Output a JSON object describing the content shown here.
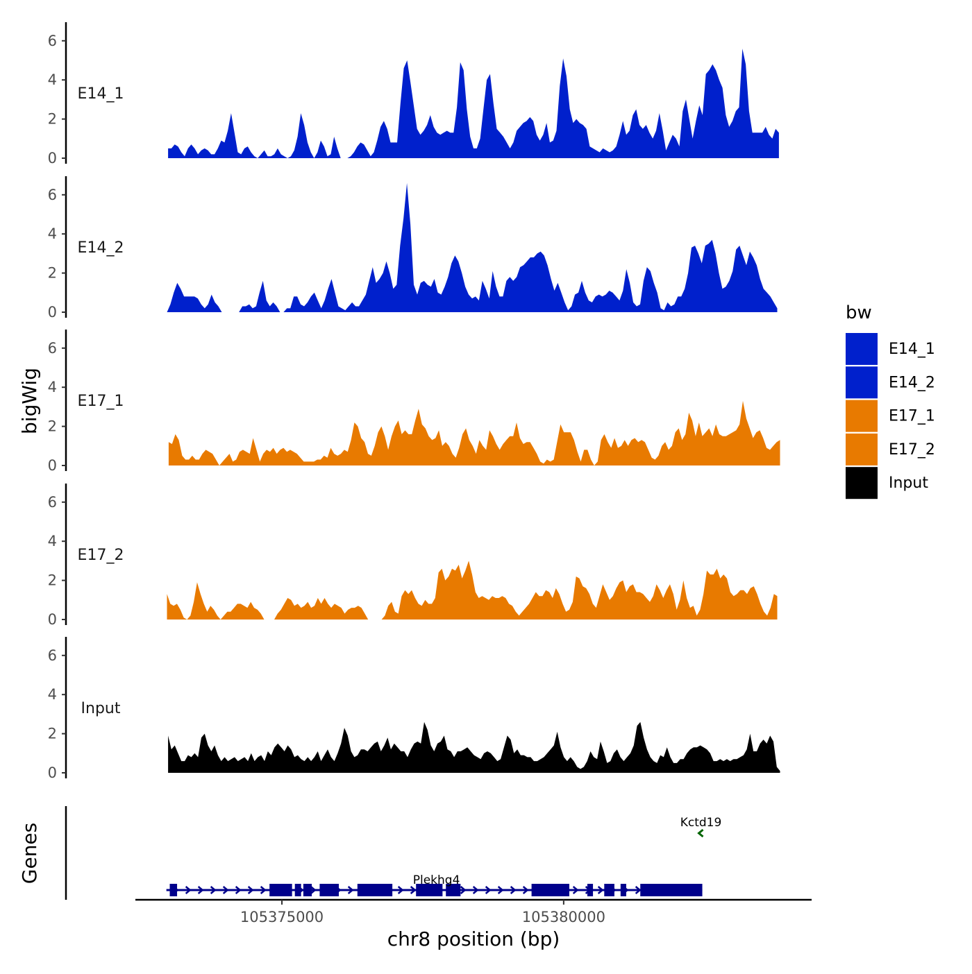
{
  "chart_data": {
    "type": "area",
    "title": "",
    "ylabel": "bigWig",
    "xlabel": "chr8 position (bp)",
    "genes_label": "Genes",
    "xlim": [
      105372400,
      105384400
    ],
    "x_ticks": [
      105375000,
      105380000
    ],
    "x_tick_labels": [
      "105375000",
      "105380000"
    ],
    "ylim": [
      0,
      7
    ],
    "y_ticks": [
      0,
      2,
      4,
      6
    ],
    "y_tick_labels": [
      "0",
      "2",
      "4",
      "6"
    ],
    "legend": {
      "title": "bw",
      "position": "right",
      "entries": [
        {
          "label": "E14_1",
          "color": "#0020cc"
        },
        {
          "label": "E14_2",
          "color": "#0020cc"
        },
        {
          "label": "E17_1",
          "color": "#e87a00"
        },
        {
          "label": "E17_2",
          "color": "#e87a00"
        },
        {
          "label": "Input",
          "color": "#000000"
        }
      ]
    },
    "tracks": [
      {
        "name": "E14_1",
        "color": "#0020cc",
        "x_start": 105372980,
        "x_end": 105383820,
        "values": [
          0.5,
          0.5,
          0.7,
          0.6,
          0.3,
          0.1,
          0.5,
          0.7,
          0.5,
          0.2,
          0.4,
          0.5,
          0.4,
          0.2,
          0.2,
          0.5,
          0.9,
          0.8,
          1.4,
          2.3,
          1.3,
          0.3,
          0.2,
          0.5,
          0.6,
          0.3,
          0.1,
          0.0,
          0.2,
          0.4,
          0.1,
          0.1,
          0.2,
          0.5,
          0.2,
          0.1,
          0.0,
          0.1,
          0.4,
          1.1,
          2.3,
          1.7,
          0.8,
          0.3,
          0.0,
          0.3,
          0.9,
          0.6,
          0.1,
          0.2,
          1.1,
          0.5,
          0.0,
          0.0,
          0.0,
          0.1,
          0.3,
          0.6,
          0.8,
          0.7,
          0.4,
          0.1,
          0.3,
          0.9,
          1.6,
          1.9,
          1.5,
          0.8,
          0.8,
          0.8,
          2.8,
          4.6,
          5.0,
          3.9,
          2.7,
          1.5,
          1.2,
          1.4,
          1.7,
          2.2,
          1.6,
          1.3,
          1.2,
          1.3,
          1.4,
          1.3,
          1.3,
          2.6,
          4.9,
          4.5,
          2.5,
          1.1,
          0.5,
          0.5,
          1.0,
          2.5,
          4.0,
          4.3,
          2.8,
          1.5,
          1.3,
          1.1,
          0.8,
          0.5,
          0.8,
          1.4,
          1.6,
          1.8,
          1.9,
          2.1,
          1.9,
          1.2,
          0.9,
          1.2,
          1.8,
          0.8,
          0.9,
          1.4,
          3.7,
          5.1,
          4.2,
          2.5,
          1.8,
          2.0,
          1.8,
          1.7,
          1.5,
          0.6,
          0.5,
          0.4,
          0.3,
          0.5,
          0.4,
          0.3,
          0.4,
          0.6,
          1.2,
          1.9,
          1.2,
          1.4,
          2.2,
          2.5,
          1.7,
          1.5,
          1.7,
          1.3,
          1.0,
          1.4,
          2.3,
          1.4,
          0.4,
          0.8,
          1.2,
          1.0,
          0.6,
          2.4,
          3.0,
          2.0,
          1.0,
          1.9,
          2.7,
          2.2,
          4.3,
          4.5,
          4.8,
          4.5,
          4.0,
          3.6,
          2.2,
          1.6,
          1.9,
          2.4,
          2.6,
          5.6,
          4.8,
          2.4,
          1.3,
          1.3,
          1.3,
          1.3,
          1.6,
          1.2,
          1.0,
          1.5,
          1.3
        ]
      },
      {
        "name": "E14_2",
        "color": "#0020cc",
        "x_start": 105372960,
        "x_end": 105383790,
        "values": [
          0.0,
          0.4,
          1.0,
          1.5,
          1.2,
          0.8,
          0.8,
          0.8,
          0.8,
          0.7,
          0.4,
          0.2,
          0.4,
          0.9,
          0.5,
          0.3,
          0.0,
          null,
          null,
          null,
          null,
          0.0,
          0.3,
          0.3,
          0.4,
          0.2,
          0.3,
          1.0,
          1.6,
          0.6,
          0.3,
          0.5,
          0.3,
          0.0,
          0.0,
          0.2,
          0.2,
          0.8,
          0.8,
          0.4,
          0.3,
          0.5,
          0.8,
          1.0,
          0.6,
          0.2,
          0.6,
          1.2,
          1.7,
          1.0,
          0.3,
          0.2,
          0.1,
          0.3,
          0.5,
          0.3,
          0.3,
          0.6,
          0.9,
          1.6,
          2.3,
          1.5,
          1.7,
          2.0,
          2.6,
          2.0,
          1.2,
          1.4,
          3.4,
          4.8,
          6.6,
          4.5,
          1.4,
          0.9,
          1.5,
          1.6,
          1.4,
          1.3,
          1.7,
          1.0,
          0.9,
          1.3,
          1.8,
          2.5,
          2.9,
          2.6,
          2.0,
          1.3,
          0.9,
          0.7,
          0.8,
          0.6,
          1.6,
          1.2,
          0.7,
          2.1,
          1.3,
          0.8,
          0.8,
          1.6,
          1.8,
          1.6,
          1.8,
          2.3,
          2.4,
          2.6,
          2.8,
          2.8,
          3.0,
          3.1,
          2.9,
          2.4,
          1.7,
          1.1,
          1.5,
          1.0,
          0.5,
          0.1,
          0.3,
          0.9,
          1.0,
          1.6,
          1.0,
          0.6,
          0.5,
          0.8,
          0.9,
          0.8,
          0.9,
          1.1,
          1.0,
          0.8,
          0.6,
          1.1,
          2.2,
          1.5,
          0.5,
          0.3,
          0.4,
          1.6,
          2.3,
          2.1,
          1.5,
          1.0,
          0.2,
          0.1,
          0.5,
          0.3,
          0.4,
          0.8,
          0.8,
          1.2,
          2.0,
          3.3,
          3.4,
          3.0,
          2.5,
          3.4,
          3.5,
          3.7,
          3.0,
          2.0,
          1.2,
          1.3,
          1.6,
          2.1,
          3.2,
          3.4,
          2.9,
          2.4,
          3.1,
          2.8,
          2.4,
          1.7,
          1.2,
          1.0,
          0.8,
          0.5,
          0.2
        ]
      },
      {
        "name": "E17_1",
        "color": "#e87a00",
        "x_start": 105372990,
        "x_end": 105383840,
        "values": [
          1.2,
          1.1,
          1.6,
          1.3,
          0.5,
          0.3,
          0.3,
          0.5,
          0.3,
          0.3,
          0.6,
          0.8,
          0.7,
          0.6,
          0.3,
          0.0,
          0.2,
          0.4,
          0.6,
          0.2,
          0.3,
          0.7,
          0.8,
          0.7,
          0.6,
          1.4,
          0.8,
          0.2,
          0.6,
          0.8,
          0.7,
          0.9,
          0.6,
          0.8,
          0.9,
          0.7,
          0.8,
          0.7,
          0.6,
          0.4,
          0.2,
          0.2,
          0.2,
          0.2,
          0.3,
          0.3,
          0.5,
          0.4,
          0.9,
          0.6,
          0.5,
          0.6,
          0.8,
          0.7,
          1.3,
          2.2,
          2.0,
          1.4,
          1.2,
          0.6,
          0.5,
          1.0,
          1.7,
          2.0,
          1.5,
          0.8,
          1.5,
          2.0,
          2.3,
          1.6,
          1.8,
          1.6,
          1.6,
          2.3,
          2.9,
          2.1,
          1.9,
          1.5,
          1.3,
          1.4,
          1.8,
          1.0,
          1.2,
          1.0,
          0.6,
          0.4,
          0.9,
          1.6,
          1.9,
          1.3,
          1.0,
          0.6,
          1.3,
          1.0,
          0.8,
          1.8,
          1.5,
          1.1,
          0.8,
          1.1,
          1.3,
          1.5,
          1.5,
          2.2,
          1.4,
          1.1,
          1.2,
          1.2,
          0.9,
          0.6,
          0.2,
          0.1,
          0.3,
          0.2,
          0.3,
          1.2,
          2.1,
          1.7,
          1.7,
          1.7,
          1.3,
          0.7,
          0.2,
          0.8,
          0.8,
          0.3,
          0.0,
          0.2,
          1.3,
          1.6,
          1.2,
          0.9,
          1.4,
          0.9,
          1.0,
          1.3,
          1.0,
          1.3,
          1.4,
          1.2,
          1.3,
          1.2,
          0.8,
          0.4,
          0.3,
          0.5,
          1.0,
          1.2,
          0.8,
          1.0,
          1.7,
          1.9,
          1.3,
          1.6,
          2.7,
          2.3,
          1.5,
          2.2,
          1.5,
          1.7,
          1.9,
          1.5,
          2.1,
          1.6,
          1.5,
          1.5,
          1.6,
          1.7,
          1.8,
          2.1,
          3.3,
          2.4,
          1.9,
          1.4,
          1.7,
          1.8,
          1.4,
          0.9,
          0.8,
          1.0,
          1.2,
          1.3
        ]
      },
      {
        "name": "E17_2",
        "color": "#e87a00",
        "x_start": 105372960,
        "x_end": 105383790,
        "values": [
          1.3,
          0.8,
          0.7,
          0.8,
          0.5,
          0.1,
          0.0,
          0.2,
          0.9,
          1.9,
          1.3,
          0.8,
          0.4,
          0.7,
          0.5,
          0.2,
          0.0,
          0.2,
          0.4,
          0.4,
          0.6,
          0.8,
          0.8,
          0.7,
          0.6,
          0.9,
          0.6,
          0.5,
          0.3,
          0.0,
          null,
          null,
          0.0,
          0.3,
          0.5,
          0.8,
          1.1,
          1.0,
          0.7,
          0.8,
          0.6,
          0.7,
          0.9,
          0.6,
          0.7,
          1.1,
          0.8,
          1.1,
          0.8,
          0.6,
          0.8,
          0.7,
          0.6,
          0.3,
          0.5,
          0.6,
          0.6,
          0.7,
          0.6,
          0.3,
          0.0,
          null,
          null,
          null,
          0.0,
          0.2,
          0.7,
          0.9,
          0.4,
          0.3,
          1.2,
          1.5,
          1.3,
          1.5,
          1.1,
          0.8,
          0.7,
          1.0,
          0.8,
          0.8,
          1.1,
          2.4,
          2.6,
          2.0,
          2.2,
          2.6,
          2.5,
          2.8,
          2.1,
          2.5,
          3.0,
          2.3,
          1.4,
          1.1,
          1.2,
          1.1,
          1.0,
          1.2,
          1.1,
          1.1,
          1.2,
          1.1,
          0.8,
          0.7,
          0.4,
          0.2,
          0.4,
          0.6,
          0.8,
          1.1,
          1.4,
          1.2,
          1.2,
          1.5,
          1.4,
          1.1,
          1.6,
          1.3,
          0.8,
          0.4,
          0.5,
          0.9,
          2.2,
          2.1,
          1.7,
          1.6,
          1.3,
          0.8,
          0.6,
          1.2,
          1.8,
          1.4,
          1.0,
          1.2,
          1.6,
          1.9,
          2.0,
          1.4,
          1.7,
          1.8,
          1.4,
          1.4,
          1.3,
          1.1,
          0.9,
          1.2,
          1.8,
          1.5,
          1.1,
          1.5,
          1.8,
          1.3,
          0.5,
          1.0,
          2.0,
          1.1,
          0.6,
          0.7,
          0.2,
          0.5,
          1.3,
          2.5,
          2.3,
          2.3,
          2.6,
          2.1,
          2.3,
          2.1,
          1.4,
          1.2,
          1.3,
          1.5,
          1.5,
          1.3,
          1.6,
          1.7,
          1.3,
          0.8,
          0.4,
          0.2,
          0.6,
          1.3,
          1.2
        ]
      },
      {
        "name": "Input",
        "color": "#000000",
        "x_start": 105372980,
        "x_end": 105383840,
        "values": [
          1.9,
          1.2,
          1.4,
          1.0,
          0.6,
          0.6,
          0.9,
          0.8,
          1.0,
          0.8,
          1.8,
          2.0,
          1.4,
          1.1,
          1.4,
          0.9,
          0.6,
          0.8,
          0.6,
          0.7,
          0.8,
          0.6,
          0.7,
          0.8,
          0.6,
          1.0,
          0.6,
          0.8,
          0.9,
          0.6,
          1.1,
          0.9,
          1.3,
          1.5,
          1.3,
          1.1,
          1.4,
          1.2,
          0.8,
          0.9,
          0.7,
          0.6,
          0.8,
          0.6,
          0.8,
          1.1,
          0.6,
          0.9,
          1.2,
          0.8,
          0.6,
          1.0,
          1.5,
          2.3,
          1.9,
          1.1,
          0.8,
          0.9,
          1.2,
          1.2,
          1.1,
          1.3,
          1.5,
          1.6,
          1.1,
          1.4,
          1.8,
          1.2,
          1.5,
          1.3,
          1.1,
          1.1,
          0.8,
          1.2,
          1.5,
          1.6,
          1.5,
          2.6,
          2.2,
          1.4,
          1.1,
          1.5,
          1.6,
          1.9,
          1.2,
          1.1,
          0.8,
          1.1,
          1.1,
          1.2,
          1.3,
          1.1,
          0.9,
          0.8,
          0.7,
          1.0,
          1.1,
          1.0,
          0.8,
          0.6,
          0.7,
          1.3,
          1.9,
          1.7,
          1.0,
          1.2,
          0.9,
          0.9,
          0.8,
          0.8,
          0.6,
          0.6,
          0.7,
          0.8,
          1.0,
          1.2,
          1.4,
          2.1,
          1.3,
          0.8,
          0.6,
          0.8,
          0.6,
          0.3,
          0.2,
          0.3,
          0.6,
          1.1,
          0.8,
          0.7,
          1.6,
          1.1,
          0.5,
          0.6,
          1.0,
          1.2,
          0.8,
          0.6,
          0.8,
          1.0,
          1.4,
          2.4,
          2.6,
          1.8,
          1.2,
          0.8,
          0.6,
          0.5,
          0.9,
          0.8,
          1.3,
          0.8,
          0.5,
          0.5,
          0.7,
          0.7,
          1.0,
          1.2,
          1.3,
          1.3,
          1.4,
          1.3,
          1.2,
          1.0,
          0.6,
          0.6,
          0.7,
          0.6,
          0.7,
          0.6,
          0.7,
          0.7,
          0.8,
          0.9,
          1.2,
          2.0,
          1.1,
          1.1,
          1.5,
          1.7,
          1.5,
          1.9,
          1.6,
          0.3,
          0.1
        ]
      }
    ],
    "genes": [
      {
        "name": "Plekhg4",
        "strand": "+",
        "color": "#00008b",
        "start": 105372950,
        "end": 105382460,
        "exons": [
          [
            105373010,
            105373140
          ],
          [
            105374780,
            105375180
          ],
          [
            105375230,
            105375340
          ],
          [
            105375380,
            105375530
          ],
          [
            105375670,
            105376010
          ],
          [
            105376340,
            105376960
          ],
          [
            105377380,
            105377850
          ],
          [
            105377910,
            105378170
          ],
          [
            105379430,
            105380100
          ],
          [
            105380420,
            105380520
          ],
          [
            105380720,
            105380900
          ],
          [
            105381010,
            105381110
          ],
          [
            105381360,
            105382460
          ]
        ]
      },
      {
        "name": "Kctd19",
        "strand": "-",
        "color": "#006400",
        "start": 105382410,
        "end": 105382460,
        "exons": []
      }
    ]
  }
}
